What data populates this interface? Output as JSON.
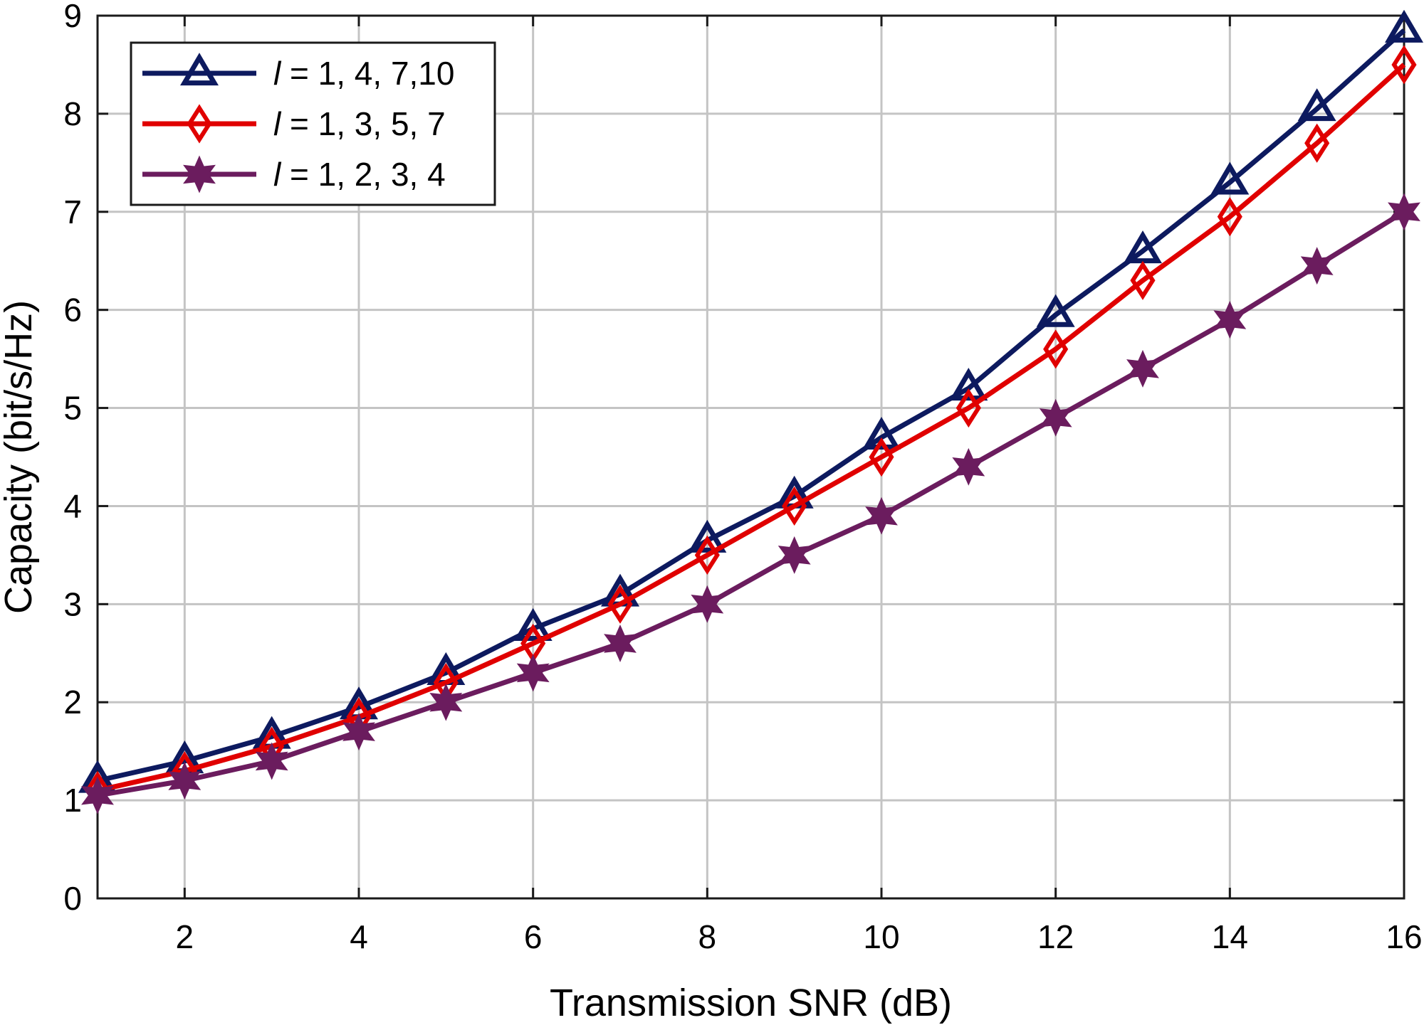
{
  "chart_data": {
    "type": "line",
    "title": "",
    "xlabel": "Transmission SNR (dB)",
    "ylabel": "Capacity (bit/s/Hz)",
    "xlim": [
      1,
      16
    ],
    "ylim": [
      0,
      9
    ],
    "xticks": [
      2,
      4,
      6,
      8,
      10,
      12,
      14,
      16
    ],
    "yticks": [
      0,
      1,
      2,
      3,
      4,
      5,
      6,
      7,
      8,
      9
    ],
    "grid": true,
    "legend_position": "top-left",
    "x": [
      1,
      2,
      3,
      4,
      5,
      6,
      7,
      8,
      9,
      10,
      11,
      12,
      13,
      14,
      15,
      16
    ],
    "series": [
      {
        "name": "l = 1, 4, 7,10",
        "legend_var": "l",
        "legend_rest": " = 1, 4, 7,10",
        "color": "#0d1a5f",
        "marker": "triangle",
        "values": [
          1.2,
          1.4,
          1.65,
          1.95,
          2.3,
          2.75,
          3.1,
          3.65,
          4.1,
          4.7,
          5.2,
          5.95,
          6.6,
          7.3,
          8.05,
          8.85
        ]
      },
      {
        "name": "l = 1, 3, 5, 7",
        "legend_var": "l",
        "legend_rest": " = 1, 3, 5, 7",
        "color": "#e00000",
        "marker": "diamond",
        "values": [
          1.1,
          1.3,
          1.55,
          1.85,
          2.2,
          2.6,
          3.0,
          3.5,
          4.0,
          4.5,
          5.0,
          5.6,
          6.3,
          6.95,
          7.7,
          8.5
        ]
      },
      {
        "name": "l = 1, 2, 3, 4",
        "legend_var": "l",
        "legend_rest": " = 1, 2, 3, 4",
        "color": "#6b1c5e",
        "marker": "star",
        "values": [
          1.05,
          1.2,
          1.4,
          1.7,
          2.0,
          2.3,
          2.6,
          3.0,
          3.5,
          3.9,
          4.4,
          4.9,
          5.4,
          5.9,
          6.45,
          7.0
        ]
      }
    ]
  }
}
